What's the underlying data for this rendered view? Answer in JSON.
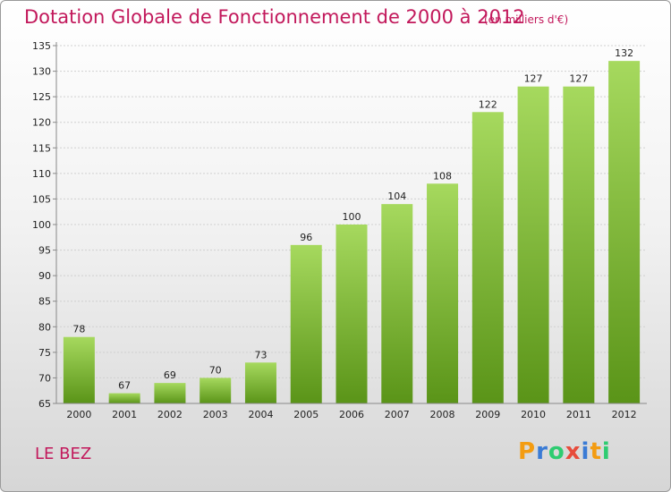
{
  "title": "Dotation Globale de Fonctionnement de 2000 à 2012",
  "unit_note": "(en milliers d'€)",
  "commune": "LE BEZ",
  "brand": {
    "letters": [
      "P",
      "r",
      "o",
      "x",
      "i",
      "t",
      "i"
    ],
    "colors": [
      "#f39c12",
      "#3a7bd5",
      "#2ecc71",
      "#e74c3c",
      "#3a7bd5",
      "#f39c12",
      "#2ecc71"
    ]
  },
  "colors": {
    "accent": "#c2185b",
    "bar_top": "#9dd155",
    "bar_bottom": "#5f9a1a"
  },
  "chart_data": {
    "type": "bar",
    "categories": [
      "2000",
      "2001",
      "2002",
      "2003",
      "2004",
      "2005",
      "2006",
      "2007",
      "2008",
      "2009",
      "2010",
      "2011",
      "2012"
    ],
    "values": [
      78,
      67,
      69,
      70,
      73,
      96,
      100,
      104,
      108,
      122,
      127,
      127,
      132
    ],
    "title": "Dotation Globale de Fonctionnement de 2000 à 2012",
    "xlabel": "",
    "ylabel": "",
    "ylim": [
      65,
      135
    ],
    "yticks": [
      65,
      70,
      75,
      80,
      85,
      90,
      95,
      100,
      105,
      110,
      115,
      120,
      125,
      130,
      135
    ],
    "grid": true
  }
}
